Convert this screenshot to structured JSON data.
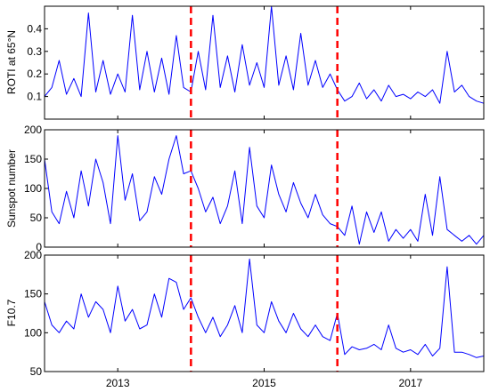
{
  "chart_data": {
    "type": "line",
    "x_range": [
      2012,
      2018
    ],
    "x_ticks": [
      {
        "value": 2013,
        "label": "2013"
      },
      {
        "value": 2015,
        "label": "2015"
      },
      {
        "value": 2017,
        "label": "2017"
      }
    ],
    "vlines": [
      2014.0,
      2016.0
    ],
    "colors": {
      "series": "#0000ff",
      "vline": "#ff0000",
      "axis": "#000000"
    },
    "panels": [
      {
        "id": "roti",
        "ylabel": "ROTI at 65°N",
        "ylim": [
          0,
          0.5
        ],
        "yticks": [
          {
            "value": 0.1,
            "label": "0.1"
          },
          {
            "value": 0.2,
            "label": "0.2"
          },
          {
            "value": 0.3,
            "label": "0.3"
          },
          {
            "value": 0.4,
            "label": "0.4"
          }
        ],
        "series": {
          "x": [
            2012.0,
            2012.1,
            2012.2,
            2012.3,
            2012.4,
            2012.5,
            2012.6,
            2012.7,
            2012.8,
            2012.9,
            2013.0,
            2013.1,
            2013.2,
            2013.3,
            2013.4,
            2013.5,
            2013.6,
            2013.7,
            2013.8,
            2013.9,
            2014.0,
            2014.1,
            2014.2,
            2014.3,
            2014.4,
            2014.5,
            2014.6,
            2014.7,
            2014.8,
            2014.9,
            2015.0,
            2015.1,
            2015.2,
            2015.3,
            2015.4,
            2015.5,
            2015.6,
            2015.7,
            2015.8,
            2015.9,
            2016.0,
            2016.1,
            2016.2,
            2016.3,
            2016.4,
            2016.5,
            2016.6,
            2016.7,
            2016.8,
            2016.9,
            2017.0,
            2017.1,
            2017.2,
            2017.3,
            2017.4,
            2017.5,
            2017.6,
            2017.7,
            2017.8,
            2017.9,
            2018.0
          ],
          "y": [
            0.1,
            0.14,
            0.26,
            0.11,
            0.18,
            0.1,
            0.47,
            0.12,
            0.26,
            0.11,
            0.2,
            0.12,
            0.46,
            0.13,
            0.3,
            0.12,
            0.27,
            0.11,
            0.37,
            0.14,
            0.12,
            0.3,
            0.13,
            0.46,
            0.14,
            0.28,
            0.12,
            0.33,
            0.15,
            0.25,
            0.14,
            0.5,
            0.15,
            0.28,
            0.13,
            0.38,
            0.15,
            0.26,
            0.14,
            0.2,
            0.13,
            0.08,
            0.1,
            0.16,
            0.09,
            0.13,
            0.08,
            0.15,
            0.1,
            0.11,
            0.09,
            0.12,
            0.1,
            0.13,
            0.07,
            0.3,
            0.12,
            0.15,
            0.1,
            0.08,
            0.07
          ]
        }
      },
      {
        "id": "sunspot",
        "ylabel": "Sunspot number",
        "ylim": [
          0,
          200
        ],
        "yticks": [
          {
            "value": 0,
            "label": "0"
          },
          {
            "value": 50,
            "label": "50"
          },
          {
            "value": 100,
            "label": "100"
          },
          {
            "value": 150,
            "label": "150"
          },
          {
            "value": 200,
            "label": "200"
          }
        ],
        "series": {
          "x": [
            2012.0,
            2012.1,
            2012.2,
            2012.3,
            2012.4,
            2012.5,
            2012.6,
            2012.7,
            2012.8,
            2012.9,
            2013.0,
            2013.1,
            2013.2,
            2013.3,
            2013.4,
            2013.5,
            2013.6,
            2013.7,
            2013.8,
            2013.9,
            2014.0,
            2014.1,
            2014.2,
            2014.3,
            2014.4,
            2014.5,
            2014.6,
            2014.7,
            2014.8,
            2014.9,
            2015.0,
            2015.1,
            2015.2,
            2015.3,
            2015.4,
            2015.5,
            2015.6,
            2015.7,
            2015.8,
            2015.9,
            2016.0,
            2016.1,
            2016.2,
            2016.3,
            2016.4,
            2016.5,
            2016.6,
            2016.7,
            2016.8,
            2016.9,
            2017.0,
            2017.1,
            2017.2,
            2017.3,
            2017.4,
            2017.5,
            2017.6,
            2017.7,
            2017.8,
            2017.9,
            2018.0
          ],
          "y": [
            150,
            60,
            40,
            95,
            50,
            130,
            70,
            150,
            110,
            40,
            190,
            80,
            125,
            45,
            60,
            120,
            90,
            150,
            190,
            125,
            130,
            100,
            60,
            85,
            40,
            70,
            130,
            40,
            170,
            70,
            50,
            140,
            90,
            60,
            110,
            75,
            50,
            90,
            55,
            40,
            35,
            20,
            70,
            5,
            60,
            25,
            60,
            10,
            30,
            15,
            30,
            10,
            90,
            20,
            120,
            30,
            20,
            10,
            20,
            5,
            20
          ]
        }
      },
      {
        "id": "f107",
        "ylabel": "F10.7",
        "ylim": [
          50,
          200
        ],
        "yticks": [
          {
            "value": 50,
            "label": "50"
          },
          {
            "value": 100,
            "label": "100"
          },
          {
            "value": 150,
            "label": "150"
          },
          {
            "value": 200,
            "label": "200"
          }
        ],
        "series": {
          "x": [
            2012.0,
            2012.1,
            2012.2,
            2012.3,
            2012.4,
            2012.5,
            2012.6,
            2012.7,
            2012.8,
            2012.9,
            2013.0,
            2013.1,
            2013.2,
            2013.3,
            2013.4,
            2013.5,
            2013.6,
            2013.7,
            2013.8,
            2013.9,
            2014.0,
            2014.1,
            2014.2,
            2014.3,
            2014.4,
            2014.5,
            2014.6,
            2014.7,
            2014.8,
            2014.9,
            2015.0,
            2015.1,
            2015.2,
            2015.3,
            2015.4,
            2015.5,
            2015.6,
            2015.7,
            2015.8,
            2015.9,
            2016.0,
            2016.1,
            2016.2,
            2016.3,
            2016.4,
            2016.5,
            2016.6,
            2016.7,
            2016.8,
            2016.9,
            2017.0,
            2017.1,
            2017.2,
            2017.3,
            2017.4,
            2017.5,
            2017.6,
            2017.7,
            2017.8,
            2017.9,
            2018.0
          ],
          "y": [
            140,
            110,
            100,
            115,
            105,
            150,
            120,
            140,
            130,
            100,
            160,
            115,
            130,
            105,
            110,
            150,
            120,
            170,
            165,
            130,
            145,
            120,
            100,
            120,
            95,
            110,
            135,
            100,
            195,
            110,
            100,
            140,
            115,
            100,
            125,
            105,
            95,
            110,
            95,
            90,
            125,
            72,
            82,
            78,
            80,
            85,
            78,
            110,
            80,
            75,
            78,
            72,
            85,
            70,
            80,
            185,
            75,
            75,
            72,
            68,
            70
          ]
        }
      }
    ]
  }
}
